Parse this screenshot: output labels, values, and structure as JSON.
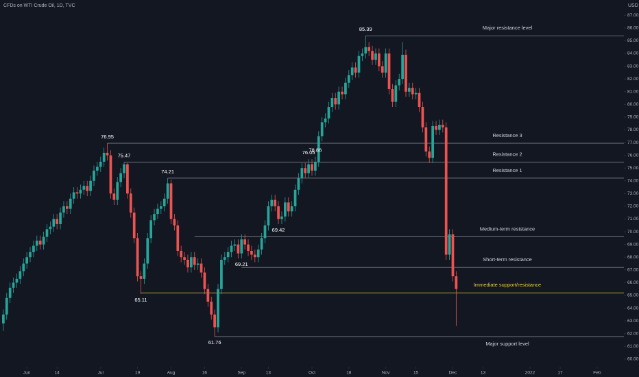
{
  "chart_data": {
    "type": "candlestick",
    "title": "CFDs on WTI Crude Oil, 1D, TVC",
    "y_axis_label": "USD",
    "up_color": "#26a69a",
    "down_color": "#ef5350",
    "xlim": [
      -1,
      185
    ],
    "ylim": [
      59.4,
      88.2
    ],
    "xticks": [
      {
        "value": 7,
        "label": "Jun"
      },
      {
        "value": 16,
        "label": "14"
      },
      {
        "value": 29,
        "label": "Jul"
      },
      {
        "value": 40,
        "label": "19"
      },
      {
        "value": 50,
        "label": "Aug"
      },
      {
        "value": 60,
        "label": "16"
      },
      {
        "value": 71,
        "label": "Sep"
      },
      {
        "value": 79,
        "label": "13"
      },
      {
        "value": 92,
        "label": "Oct"
      },
      {
        "value": 103,
        "label": "18"
      },
      {
        "value": 114,
        "label": "Nov"
      },
      {
        "value": 123,
        "label": "15"
      },
      {
        "value": 134,
        "label": "Dec"
      },
      {
        "value": 143,
        "label": "13"
      },
      {
        "value": 157,
        "label": "2022"
      },
      {
        "value": 166,
        "label": "17"
      },
      {
        "value": 177,
        "label": "Feb"
      }
    ],
    "yticks": [
      {
        "value": 87,
        "label": "87.00"
      },
      {
        "value": 86,
        "label": "86.00"
      },
      {
        "value": 85,
        "label": "85.00"
      },
      {
        "value": 84,
        "label": "84.00"
      },
      {
        "value": 83,
        "label": "83.00"
      },
      {
        "value": 82,
        "label": "82.00"
      },
      {
        "value": 81,
        "label": "81.00"
      },
      {
        "value": 80,
        "label": "80.00"
      },
      {
        "value": 79,
        "label": "79.00"
      },
      {
        "value": 78,
        "label": "78.00"
      },
      {
        "value": 77,
        "label": "77.00"
      },
      {
        "value": 76,
        "label": "76.00"
      },
      {
        "value": 75,
        "label": "75.00"
      },
      {
        "value": 74,
        "label": "74.00"
      },
      {
        "value": 73,
        "label": "73.00"
      },
      {
        "value": 72,
        "label": "72.00"
      },
      {
        "value": 71,
        "label": "71.00"
      },
      {
        "value": 70,
        "label": "70.00"
      },
      {
        "value": 69,
        "label": "69.00"
      },
      {
        "value": 68,
        "label": "68.00"
      },
      {
        "value": 67,
        "label": "67.00"
      },
      {
        "value": 66,
        "label": "66.00"
      },
      {
        "value": 65,
        "label": "65.00"
      },
      {
        "value": 64,
        "label": "64.00"
      },
      {
        "value": 63,
        "label": "63.00"
      },
      {
        "value": 62,
        "label": "62.00"
      },
      {
        "value": 61,
        "label": "61.00"
      },
      {
        "value": 60,
        "label": "60.00"
      }
    ],
    "open": [
      62.8,
      63.5,
      64.8,
      65.6,
      66.0,
      66.3,
      66.9,
      67.5,
      68.0,
      68.4,
      68.9,
      69.3,
      69.0,
      69.6,
      70.2,
      70.4,
      71.0,
      70.6,
      71.5,
      72.0,
      71.8,
      72.6,
      73.1,
      73.0,
      73.3,
      73.6,
      73.2,
      74.0,
      74.8,
      75.1,
      75.5,
      76.2,
      76.0,
      73.0,
      72.5,
      73.9,
      74.6,
      75.3,
      73.0,
      71.5,
      69.5,
      66.5,
      66.3,
      67.5,
      69.5,
      70.9,
      71.4,
      71.8,
      72.0,
      72.6,
      73.8,
      71.0,
      70.5,
      68.5,
      68.0,
      67.8,
      67.2,
      68.0,
      67.4,
      67.5,
      66.8,
      65.5,
      64.5,
      63.5,
      62.5,
      65.5,
      67.8,
      68.0,
      68.4,
      68.9,
      69.0,
      68.3,
      69.4,
      69.0,
      68.5,
      68.2,
      68.0,
      68.6,
      69.5,
      70.5,
      72.0,
      72.5,
      72.0,
      71.0,
      71.2,
      72.3,
      71.6,
      72.0,
      73.3,
      74.2,
      75.0,
      74.6,
      75.3,
      74.8,
      75.5,
      77.5,
      78.6,
      78.9,
      79.8,
      80.5,
      80.0,
      81.0,
      80.8,
      81.7,
      82.3,
      82.9,
      82.5,
      83.8,
      84.0,
      84.5,
      84.2,
      83.5,
      84.0,
      83.0,
      82.5,
      84.0,
      81.2,
      80.2,
      81.5,
      82.0,
      83.9,
      81.0,
      81.3,
      80.8,
      80.9,
      79.8,
      78.2,
      76.3,
      75.8,
      78.3,
      78.0,
      78.4,
      78.2,
      68.2,
      69.8,
      66.5
    ],
    "high": [
      63.9,
      65.2,
      66.0,
      66.4,
      66.7,
      67.3,
      67.9,
      68.4,
      68.8,
      69.3,
      69.7,
      69.7,
      70.0,
      70.6,
      70.8,
      71.4,
      71.4,
      71.9,
      72.4,
      72.4,
      73.0,
      73.5,
      73.5,
      73.7,
      74.0,
      74.0,
      74.4,
      75.2,
      75.5,
      75.9,
      76.6,
      76.95,
      76.4,
      73.4,
      74.3,
      75.0,
      75.47,
      75.4,
      73.4,
      71.9,
      69.9,
      66.9,
      67.9,
      69.9,
      71.3,
      71.8,
      72.2,
      72.4,
      73.0,
      74.21,
      74.1,
      71.4,
      70.9,
      68.9,
      68.4,
      68.2,
      68.4,
      68.4,
      67.9,
      67.9,
      67.2,
      65.9,
      64.9,
      63.9,
      65.9,
      68.2,
      68.4,
      68.8,
      69.3,
      69.4,
      69.4,
      69.8,
      69.8,
      69.4,
      68.9,
      68.6,
      69.0,
      69.9,
      70.9,
      72.4,
      72.9,
      72.9,
      72.4,
      71.6,
      72.7,
      72.7,
      72.4,
      73.7,
      74.6,
      75.4,
      75.4,
      75.7,
      75.7,
      75.9,
      77.9,
      79.0,
      79.3,
      80.2,
      80.9,
      80.9,
      81.4,
      81.4,
      82.1,
      82.7,
      83.3,
      83.3,
      84.2,
      84.4,
      85.39,
      84.9,
      84.6,
      84.4,
      84.4,
      83.4,
      84.4,
      84.4,
      81.6,
      81.9,
      82.4,
      84.9,
      84.3,
      81.7,
      81.7,
      81.3,
      81.3,
      80.2,
      78.6,
      76.7,
      78.7,
      78.7,
      78.8,
      78.8,
      78.6,
      70.2,
      70.2,
      66.9
    ],
    "low": [
      62.2,
      63.1,
      64.4,
      65.2,
      65.6,
      65.9,
      66.5,
      67.1,
      67.6,
      68.0,
      68.5,
      68.6,
      68.6,
      69.2,
      69.8,
      70.0,
      70.2,
      70.2,
      71.1,
      71.4,
      71.4,
      72.2,
      72.6,
      72.6,
      72.9,
      72.8,
      72.8,
      73.6,
      74.4,
      74.7,
      75.1,
      75.6,
      72.6,
      72.1,
      72.1,
      73.5,
      74.2,
      72.6,
      71.1,
      69.1,
      66.1,
      65.11,
      65.9,
      67.1,
      69.1,
      70.5,
      71.0,
      71.4,
      71.6,
      72.2,
      70.6,
      70.1,
      68.1,
      67.6,
      67.4,
      66.8,
      66.8,
      67.0,
      67.0,
      66.4,
      65.1,
      64.1,
      63.1,
      61.76,
      62.1,
      65.1,
      67.4,
      67.6,
      68.0,
      68.5,
      67.9,
      67.9,
      68.6,
      68.1,
      67.8,
      67.6,
      67.6,
      68.2,
      69.1,
      70.1,
      71.6,
      71.6,
      70.6,
      70.6,
      70.8,
      71.2,
      71.2,
      71.6,
      72.9,
      73.8,
      74.2,
      74.2,
      74.4,
      74.4,
      75.1,
      77.1,
      78.2,
      78.5,
      79.4,
      79.6,
      79.6,
      80.4,
      80.4,
      81.3,
      81.9,
      82.1,
      82.1,
      83.4,
      83.6,
      83.8,
      83.1,
      83.1,
      82.6,
      82.1,
      82.1,
      80.8,
      79.8,
      79.8,
      81.1,
      81.6,
      80.6,
      80.6,
      80.4,
      80.4,
      79.4,
      77.8,
      75.9,
      75.4,
      75.4,
      77.6,
      77.6,
      77.8,
      67.8,
      67.8,
      66.1,
      62.6
    ],
    "close": [
      63.5,
      64.8,
      65.6,
      66.0,
      66.3,
      66.9,
      67.5,
      68.0,
      68.4,
      68.9,
      69.3,
      69.0,
      69.6,
      70.2,
      70.4,
      71.0,
      70.6,
      71.5,
      72.0,
      71.8,
      72.6,
      73.1,
      73.0,
      73.3,
      73.6,
      73.2,
      74.0,
      74.8,
      75.1,
      75.5,
      76.2,
      76.0,
      73.0,
      72.5,
      73.9,
      74.6,
      75.3,
      73.0,
      71.5,
      69.5,
      66.5,
      66.3,
      67.5,
      69.5,
      70.9,
      71.4,
      71.8,
      72.0,
      72.6,
      73.8,
      71.0,
      70.5,
      68.5,
      68.0,
      67.8,
      67.2,
      68.0,
      67.4,
      67.5,
      66.8,
      65.5,
      64.5,
      63.5,
      62.5,
      65.5,
      67.8,
      68.0,
      68.4,
      68.9,
      69.0,
      68.3,
      69.4,
      69.0,
      68.5,
      68.2,
      68.0,
      68.6,
      69.5,
      70.5,
      72.0,
      72.5,
      72.0,
      71.0,
      71.2,
      72.3,
      71.6,
      72.0,
      73.3,
      74.2,
      75.0,
      74.6,
      75.3,
      74.8,
      75.5,
      77.5,
      78.6,
      78.9,
      79.8,
      80.5,
      80.0,
      81.0,
      80.8,
      81.7,
      82.3,
      82.9,
      82.5,
      83.8,
      84.0,
      84.5,
      84.2,
      83.5,
      84.0,
      83.0,
      82.5,
      84.0,
      81.2,
      80.2,
      81.5,
      82.0,
      83.9,
      81.0,
      81.3,
      80.8,
      80.9,
      79.8,
      78.2,
      76.3,
      75.8,
      78.3,
      78.0,
      78.4,
      78.2,
      68.2,
      69.8,
      66.5,
      65.5
    ],
    "levels": [
      {
        "label": "Major resistance level",
        "value": 85.39,
        "start": 108,
        "color": "#9598a1"
      },
      {
        "label": "Resistance 3",
        "value": 76.95,
        "start": 31,
        "color": "#9598a1"
      },
      {
        "label": "Resistance 2",
        "value": 75.47,
        "start": 36,
        "color": "#9598a1"
      },
      {
        "label": "Resistance 1",
        "value": 74.21,
        "start": 49,
        "color": "#9598a1"
      },
      {
        "label": "Medium-term resistance",
        "value": 69.6,
        "start": 57,
        "color": "#9598a1"
      },
      {
        "label": "Short-term resistance",
        "value": 67.2,
        "start": 71,
        "color": "#9598a1"
      },
      {
        "label": "Immediate support/resistance",
        "value": 65.2,
        "start": 41,
        "color": "#e8d33f"
      },
      {
        "label": "Major support level",
        "value": 61.76,
        "start": 63,
        "color": "#9598a1"
      }
    ],
    "annotations": [
      {
        "value": 76.95,
        "index": 31
      },
      {
        "value": 75.47,
        "index": 36
      },
      {
        "value": 74.21,
        "index": 49
      },
      {
        "value": 65.11,
        "index": 41
      },
      {
        "value": 61.76,
        "index": 63
      },
      {
        "value": 69.21,
        "index": 71
      },
      {
        "value": 69.42,
        "index": 82
      },
      {
        "value": 76.05,
        "index": 91
      },
      {
        "value": 78.86,
        "index": 93
      },
      {
        "value": 85.39,
        "index": 108
      }
    ]
  }
}
